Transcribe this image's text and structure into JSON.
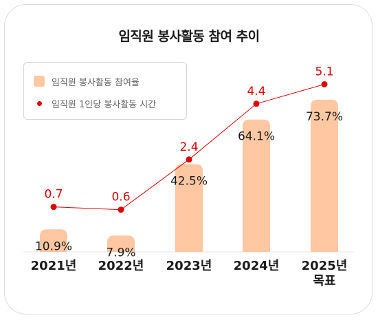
{
  "title": "임직원 봉사활동 참여 추이",
  "legend": {
    "bar_label": "임직원 봉사활동 참여율",
    "line_label": "임직원 1인당 봉사활동 시간"
  },
  "colors": {
    "bar": "#ffc7a2",
    "line": "#e00000",
    "text": "#1a1a1a"
  },
  "chart_data": {
    "type": "bar",
    "title": "임직원 봉사활동 참여 추이",
    "categories": [
      "2021년",
      "2022년",
      "2023년",
      "2024년",
      "2025년\n목표"
    ],
    "series": [
      {
        "name": "임직원 봉사활동 참여율",
        "type": "bar",
        "values": [
          10.9,
          7.9,
          42.5,
          64.1,
          73.7
        ],
        "labels": [
          "10.9%",
          "7.9%",
          "42.5%",
          "64.1%",
          "73.7%"
        ]
      },
      {
        "name": "임직원 1인당 봉사활동 시간",
        "type": "line",
        "values": [
          0.7,
          0.6,
          2.4,
          4.4,
          5.1
        ],
        "labels": [
          "0.7",
          "0.6",
          "2.4",
          "4.4",
          "5.1"
        ]
      }
    ],
    "legend": "top-left",
    "grid": false
  }
}
